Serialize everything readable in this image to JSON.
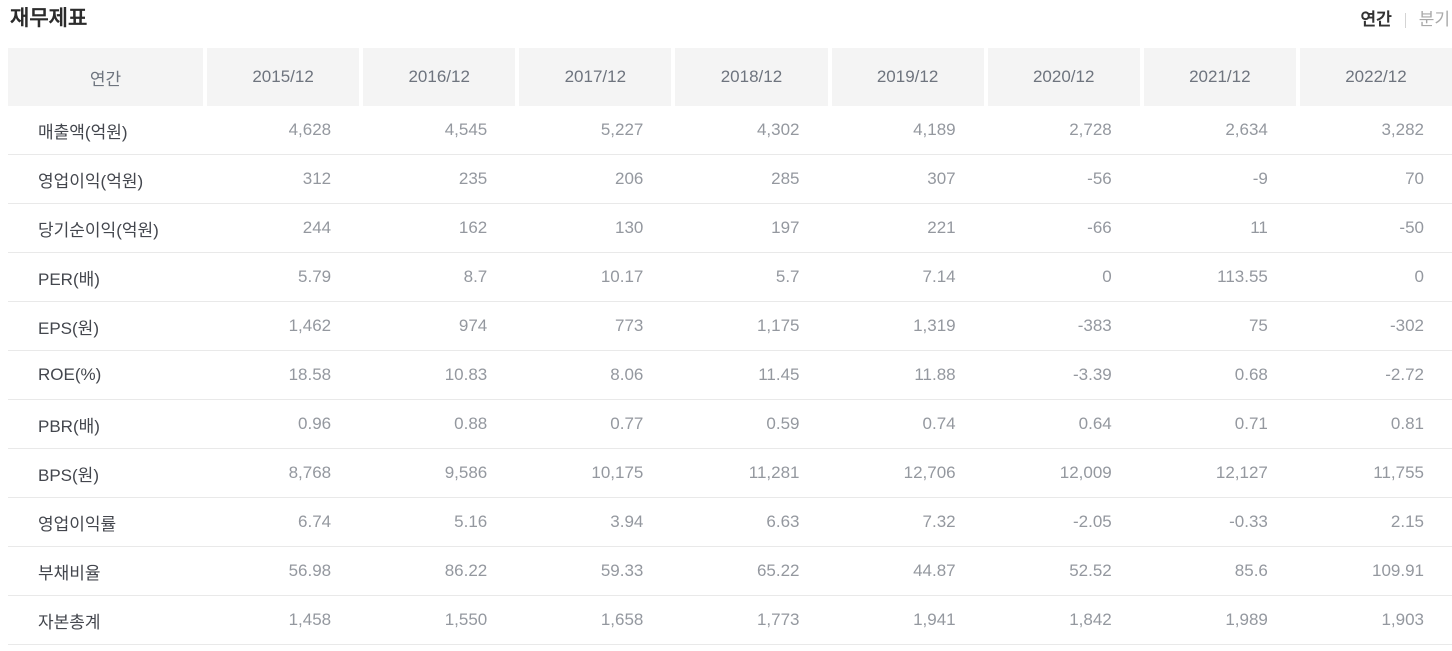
{
  "page": {
    "title": "재무제표"
  },
  "toggle": {
    "annual_label": "연간",
    "quarterly_label": "분기",
    "active": "annual"
  },
  "table": {
    "header": [
      "연간",
      "2015/12",
      "2016/12",
      "2017/12",
      "2018/12",
      "2019/12",
      "2020/12",
      "2021/12",
      "2022/12"
    ],
    "rows": [
      {
        "label": "매출액(억원)",
        "values": [
          "4,628",
          "4,545",
          "5,227",
          "4,302",
          "4,189",
          "2,728",
          "2,634",
          "3,282"
        ]
      },
      {
        "label": "영업이익(억원)",
        "values": [
          "312",
          "235",
          "206",
          "285",
          "307",
          "-56",
          "-9",
          "70"
        ]
      },
      {
        "label": "당기순이익(억원)",
        "values": [
          "244",
          "162",
          "130",
          "197",
          "221",
          "-66",
          "11",
          "-50"
        ]
      },
      {
        "label": "PER(배)",
        "values": [
          "5.79",
          "8.7",
          "10.17",
          "5.7",
          "7.14",
          "0",
          "113.55",
          "0"
        ]
      },
      {
        "label": "EPS(원)",
        "values": [
          "1,462",
          "974",
          "773",
          "1,175",
          "1,319",
          "-383",
          "75",
          "-302"
        ]
      },
      {
        "label": "ROE(%)",
        "values": [
          "18.58",
          "10.83",
          "8.06",
          "11.45",
          "11.88",
          "-3.39",
          "0.68",
          "-2.72"
        ]
      },
      {
        "label": "PBR(배)",
        "values": [
          "0.96",
          "0.88",
          "0.77",
          "0.59",
          "0.74",
          "0.64",
          "0.71",
          "0.81"
        ]
      },
      {
        "label": "BPS(원)",
        "values": [
          "8,768",
          "9,586",
          "10,175",
          "11,281",
          "12,706",
          "12,009",
          "12,127",
          "11,755"
        ]
      },
      {
        "label": "영업이익률",
        "values": [
          "6.74",
          "5.16",
          "3.94",
          "6.63",
          "7.32",
          "-2.05",
          "-0.33",
          "2.15"
        ]
      },
      {
        "label": "부채비율",
        "values": [
          "56.98",
          "86.22",
          "59.33",
          "65.22",
          "44.87",
          "52.52",
          "85.6",
          "109.91"
        ]
      },
      {
        "label": "자본총계",
        "values": [
          "1,458",
          "1,550",
          "1,658",
          "1,773",
          "1,941",
          "1,842",
          "1,989",
          "1,903"
        ]
      }
    ]
  },
  "colors": {
    "header_bg": "#f4f4f4",
    "header_text": "#6e747e",
    "row_label_text": "#43464d",
    "value_text": "#94989f",
    "row_border": "#e9e9e9",
    "active_toggle": "#333333",
    "inactive_toggle": "#a9a9a9"
  }
}
